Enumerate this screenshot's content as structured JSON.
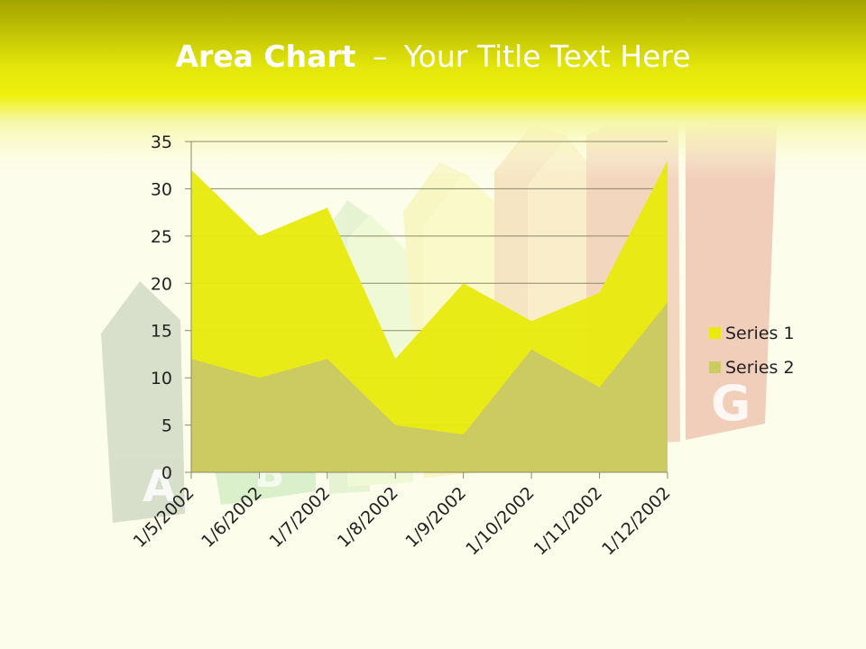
{
  "slide": {
    "title_bold": "Area Chart",
    "title_dash": "–",
    "title_rest": "Your Title Text Here"
  },
  "background_image": {
    "description": "energy efficiency rating arrows",
    "letters": [
      "A",
      "B",
      "G"
    ]
  },
  "colors": {
    "header_top": "#a8a800",
    "header_band": "#e8ec0c",
    "page_bg": "#fdfdec",
    "series1": "#e8ea10",
    "series2": "#cccb62",
    "axis_text": "#222222"
  },
  "chart_data": {
    "type": "area",
    "stacked": false,
    "categories": [
      "1/5/2002",
      "1/6/2002",
      "1/7/2002",
      "1/8/2002",
      "1/9/2002",
      "1/10/2002",
      "1/11/2002",
      "1/12/2002"
    ],
    "series": [
      {
        "name": "Series 1",
        "values": [
          32,
          25,
          28,
          12,
          20,
          16,
          19,
          33
        ],
        "color": "#e8ea10"
      },
      {
        "name": "Series 2",
        "values": [
          12,
          10,
          12,
          5,
          4,
          13,
          9,
          18
        ],
        "color": "#cccb62"
      }
    ],
    "ylim": [
      0,
      35
    ],
    "yticks": [
      0,
      5,
      10,
      15,
      20,
      25,
      30,
      35
    ],
    "grid": true,
    "legend_position": "right"
  }
}
